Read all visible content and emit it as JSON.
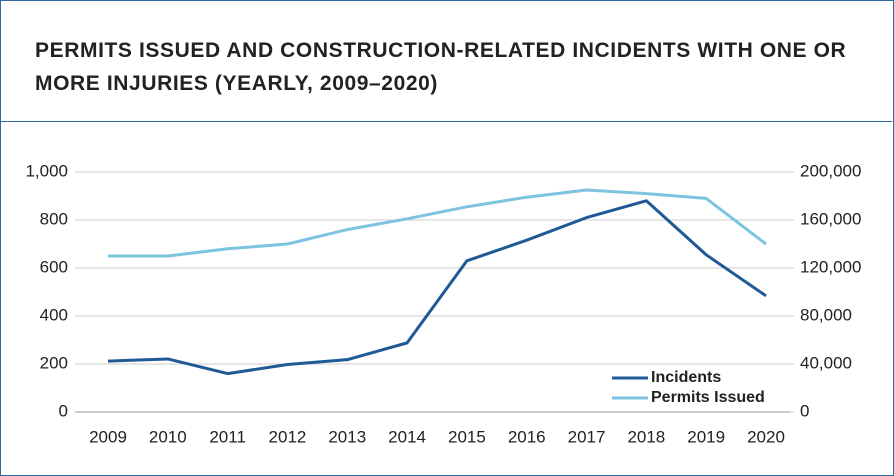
{
  "chart_data": {
    "type": "line",
    "title": "PERMITS ISSUED AND CONSTRUCTION-RELATED INCIDENTS WITH ONE OR MORE INJURIES (YEARLY, 2009–2020)",
    "categories": [
      "2009",
      "2010",
      "2011",
      "2012",
      "2013",
      "2014",
      "2015",
      "2016",
      "2017",
      "2018",
      "2019",
      "2020"
    ],
    "series": [
      {
        "name": "Incidents",
        "color": "#1f5a96",
        "values": [
          212,
          221,
          160,
          198,
          218,
          288,
          630,
          716,
          810,
          880,
          655,
          484
        ]
      },
      {
        "name": "Permits Issued",
        "color": "#7ec3e0",
        "axis": "y2",
        "values": [
          130000,
          130000,
          136000,
          140000,
          152000,
          161000,
          171000,
          179000,
          185000,
          182000,
          178000,
          140000
        ]
      }
    ],
    "ylim": [
      0,
      1000
    ],
    "yticks": [
      0,
      200,
      400,
      600,
      800,
      {
        "value": 1000,
        "label": "1,000"
      }
    ],
    "y2lim": [
      0,
      200000
    ],
    "y2ticks": [
      0,
      {
        "value": 40000,
        "label": "40,000"
      },
      {
        "value": 80000,
        "label": "80,000"
      },
      {
        "value": 120000,
        "label": "120,000"
      },
      {
        "value": 160000,
        "label": "160,000"
      },
      {
        "value": 200000,
        "label": "200,000"
      }
    ],
    "grid": true,
    "legend": "lower right"
  }
}
